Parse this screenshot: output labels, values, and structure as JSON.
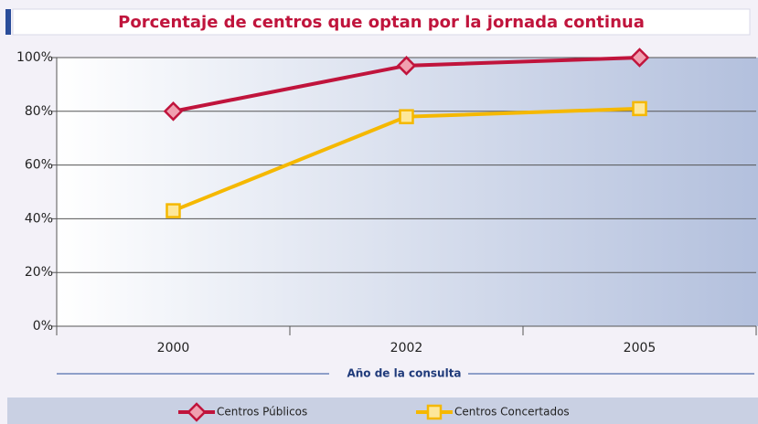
{
  "chart_data": {
    "type": "line",
    "title": "Porcentaje de centros que optan por la jornada continua",
    "x_label": "Año de la consulta",
    "categories": [
      "2000",
      "2002",
      "2005"
    ],
    "series": [
      {
        "name": "Centros Públicos",
        "color": "#c0143c",
        "values": [
          80,
          97,
          100
        ]
      },
      {
        "name": "Centros Concertados",
        "color": "#f5b800",
        "values": [
          43,
          78,
          81
        ]
      }
    ],
    "ylim": [
      0,
      100
    ],
    "yticks": [
      {
        "value": 0,
        "label": "0%"
      },
      {
        "value": 20,
        "label": "20%"
      },
      {
        "value": 40,
        "label": "40%"
      },
      {
        "value": 60,
        "label": "60%"
      },
      {
        "value": 80,
        "label": "80%"
      },
      {
        "value": 100,
        "label": "100%"
      }
    ],
    "grid": true,
    "legend": "bottom"
  }
}
